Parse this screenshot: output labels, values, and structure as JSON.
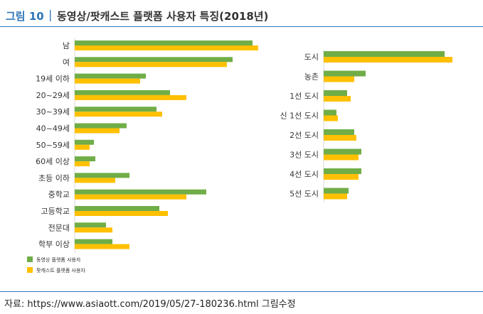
{
  "header": {
    "figure_label": "그림 10",
    "title": "동영상/팟캐스트 플랫폼 사용자 특징(2018년)"
  },
  "source": "자료:  https://www.asiaott.com/2019/05/27-180236.html  그림수정",
  "colors": {
    "video": "#70ad47",
    "podcast": "#ffc000",
    "accent": "#2e75b6"
  },
  "chart_data": [
    {
      "type": "bar",
      "orientation": "horizontal",
      "categories": [
        "남",
        "여",
        "19세 이하",
        "20~29세",
        "30~39세",
        "40~49세",
        "50~59세",
        "60세 이상",
        "초등 이하",
        "중학교",
        "고등학교",
        "전문대",
        "학부 이상"
      ],
      "series": [
        {
          "name": "동영상 플랫폼 사용자",
          "values": [
            250,
            222,
            100,
            134,
            115,
            73,
            27,
            29,
            77,
            185,
            119,
            44,
            53
          ]
        },
        {
          "name": "팟캐스트 플랫폼 사용자",
          "values": [
            258,
            214,
            92,
            157,
            123,
            63,
            21,
            21,
            57,
            157,
            131,
            53,
            77
          ]
        }
      ],
      "legend_position": "bottom-left"
    },
    {
      "type": "bar",
      "orientation": "horizontal",
      "categories": [
        "도시",
        "농촌",
        "1선 도시",
        "신 1선 도시",
        "2선 도시",
        "3선 도시",
        "4선 도시",
        "5선 도시"
      ],
      "series": [
        {
          "name": "동영상 플랫폼 사용자",
          "values": [
            170,
            59,
            33,
            18,
            43,
            53,
            53,
            35
          ]
        },
        {
          "name": "팟캐스트 플랫폼 사용자",
          "values": [
            181,
            43,
            38,
            20,
            46,
            49,
            49,
            33
          ]
        }
      ]
    }
  ]
}
